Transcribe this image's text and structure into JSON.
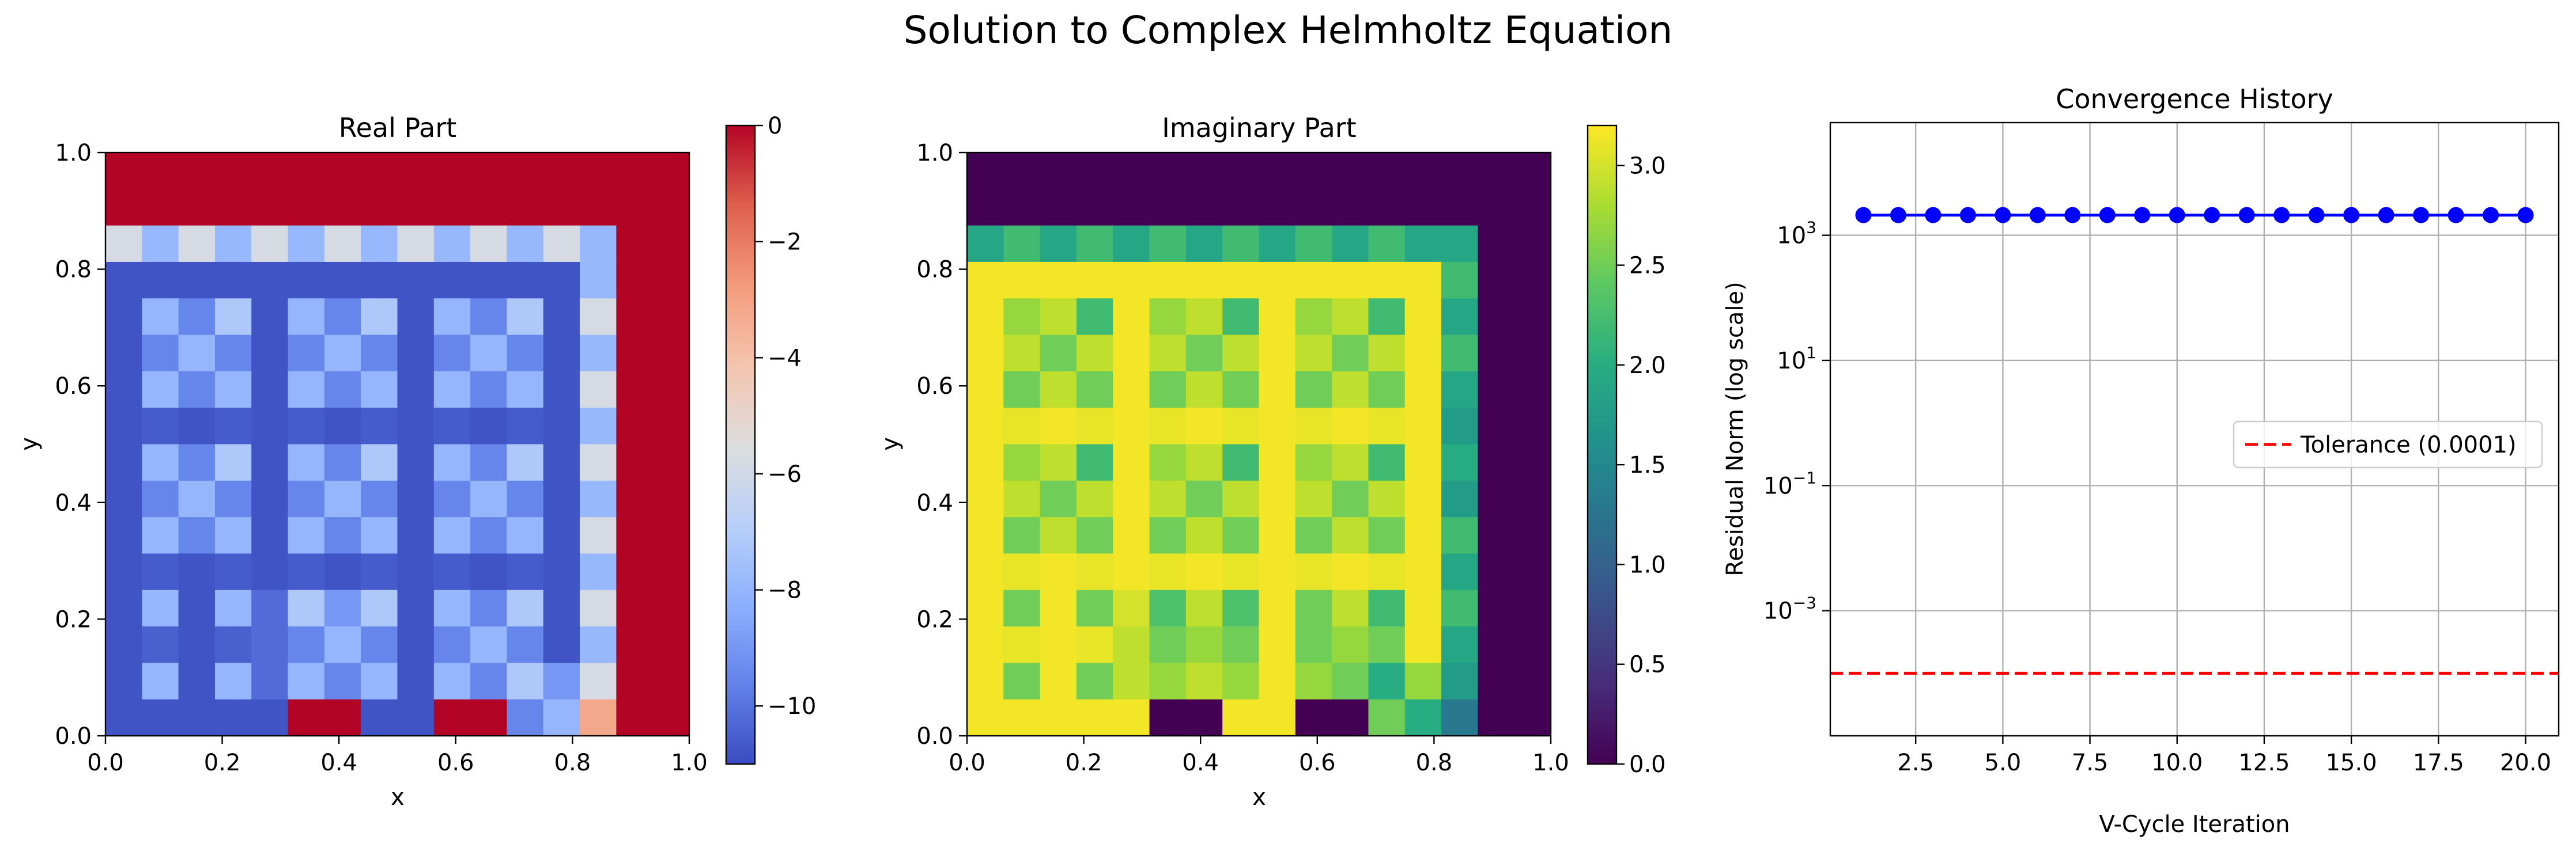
{
  "figure": {
    "title": "Solution to Complex Helmholtz Equation"
  },
  "chart_data": [
    {
      "type": "heatmap",
      "title": "Real Part",
      "xlabel": "x",
      "ylabel": "y",
      "xlim": [
        0.0,
        1.0
      ],
      "ylim": [
        0.0,
        1.0
      ],
      "xticks": [
        "0.0",
        "0.2",
        "0.4",
        "0.6",
        "0.8",
        "1.0"
      ],
      "yticks": [
        "0.0",
        "0.2",
        "0.4",
        "0.6",
        "0.8",
        "1.0"
      ],
      "colormap": "coolwarm",
      "clim": [
        -11.0,
        0.0
      ],
      "colorbar_ticks": [
        "0",
        "−2",
        "−4",
        "−6",
        "−8",
        "−10"
      ],
      "grid_size": 16,
      "values": [
        [
          0,
          0,
          0,
          0,
          0,
          0,
          0,
          0,
          0,
          0,
          0,
          0,
          0,
          0,
          0,
          0
        ],
        [
          0,
          0,
          0,
          0,
          0,
          0,
          0,
          0,
          0,
          0,
          0,
          0,
          0,
          0,
          0,
          0
        ],
        [
          -5.8,
          -7.9,
          -5.8,
          -7.9,
          -5.8,
          -7.9,
          -5.8,
          -7.9,
          -5.8,
          -7.9,
          -5.8,
          -7.9,
          -5.8,
          -7.9,
          0,
          0
        ],
        [
          -10.8,
          -10.8,
          -10.8,
          -10.8,
          -10.8,
          -10.8,
          -10.8,
          -10.8,
          -10.8,
          -10.8,
          -10.8,
          -10.8,
          -10.8,
          -7.9,
          0,
          0
        ],
        [
          -10.8,
          -8.0,
          -9.5,
          -7.2,
          -10.8,
          -8.0,
          -9.5,
          -7.2,
          -10.8,
          -8.0,
          -9.5,
          -7.2,
          -10.8,
          -5.8,
          0,
          0
        ],
        [
          -10.8,
          -9.5,
          -8.0,
          -9.5,
          -10.8,
          -9.5,
          -8.0,
          -9.5,
          -10.8,
          -9.5,
          -8.0,
          -9.5,
          -10.8,
          -7.9,
          0,
          0
        ],
        [
          -10.8,
          -8.0,
          -9.5,
          -8.0,
          -10.8,
          -8.0,
          -9.5,
          -8.0,
          -10.8,
          -8.0,
          -9.5,
          -8.0,
          -10.8,
          -5.8,
          0,
          0
        ],
        [
          -10.8,
          -10.6,
          -10.8,
          -10.6,
          -10.8,
          -10.6,
          -10.8,
          -10.6,
          -10.8,
          -10.6,
          -10.8,
          -10.6,
          -10.8,
          -7.9,
          0,
          0
        ],
        [
          -10.8,
          -8.0,
          -9.5,
          -7.2,
          -10.8,
          -8.0,
          -9.5,
          -7.2,
          -10.8,
          -8.0,
          -9.5,
          -7.2,
          -10.8,
          -5.8,
          0,
          0
        ],
        [
          -10.8,
          -9.5,
          -8.0,
          -9.5,
          -10.8,
          -9.5,
          -8.0,
          -9.5,
          -10.8,
          -9.5,
          -8.0,
          -9.5,
          -10.8,
          -7.9,
          0,
          0
        ],
        [
          -10.8,
          -8.0,
          -9.5,
          -8.0,
          -10.8,
          -8.0,
          -9.5,
          -8.0,
          -10.8,
          -8.0,
          -9.5,
          -8.0,
          -10.8,
          -5.8,
          0,
          0
        ],
        [
          -10.8,
          -10.6,
          -10.8,
          -10.6,
          -10.8,
          -10.6,
          -10.8,
          -10.6,
          -10.8,
          -10.6,
          -10.8,
          -10.6,
          -10.8,
          -7.9,
          0,
          0
        ],
        [
          -10.8,
          -8.0,
          -10.8,
          -8.0,
          -10.2,
          -7.2,
          -9.0,
          -7.2,
          -10.8,
          -8.0,
          -9.5,
          -7.2,
          -10.8,
          -5.8,
          0,
          0
        ],
        [
          -10.8,
          -10.5,
          -10.8,
          -10.5,
          -10.2,
          -9.5,
          -8.0,
          -9.5,
          -10.8,
          -9.5,
          -8.0,
          -9.5,
          -10.8,
          -7.9,
          0,
          0
        ],
        [
          -10.8,
          -8.0,
          -10.8,
          -8.0,
          -10.2,
          -8.0,
          -9.5,
          -8.0,
          -10.8,
          -8.0,
          -9.5,
          -7.2,
          -9.0,
          -5.8,
          0,
          0
        ],
        [
          -10.8,
          -10.8,
          -10.8,
          -10.8,
          -10.8,
          0,
          0,
          -10.8,
          -10.8,
          0,
          0,
          -9.5,
          -8.0,
          -3.2,
          0,
          0
        ]
      ]
    },
    {
      "type": "heatmap",
      "title": "Imaginary Part",
      "xlabel": "x",
      "ylabel": "y",
      "xlim": [
        0.0,
        1.0
      ],
      "ylim": [
        0.0,
        1.0
      ],
      "xticks": [
        "0.0",
        "0.2",
        "0.4",
        "0.6",
        "0.8",
        "1.0"
      ],
      "yticks": [
        "0.0",
        "0.2",
        "0.4",
        "0.6",
        "0.8",
        "1.0"
      ],
      "colormap": "viridis",
      "clim": [
        0.0,
        3.2
      ],
      "colorbar_ticks": [
        "0.0",
        "0.5",
        "1.0",
        "1.5",
        "2.0",
        "2.5",
        "3.0"
      ],
      "grid_size": 16,
      "values": [
        [
          0,
          0,
          0,
          0,
          0,
          0,
          0,
          0,
          0,
          0,
          0,
          0,
          0,
          0,
          0,
          0
        ],
        [
          0,
          0,
          0,
          0,
          0,
          0,
          0,
          0,
          0,
          0,
          0,
          0,
          0,
          0,
          0,
          0
        ],
        [
          1.9,
          2.2,
          1.9,
          2.2,
          1.9,
          2.2,
          1.9,
          2.2,
          1.9,
          2.2,
          1.9,
          2.2,
          1.9,
          1.9,
          0,
          0
        ],
        [
          3.15,
          3.15,
          3.15,
          3.15,
          3.15,
          3.15,
          3.15,
          3.15,
          3.15,
          3.15,
          3.15,
          3.15,
          3.15,
          2.2,
          0,
          0
        ],
        [
          3.15,
          2.7,
          2.9,
          2.2,
          3.15,
          2.7,
          2.9,
          2.2,
          3.15,
          2.7,
          2.9,
          2.2,
          3.15,
          1.9,
          0,
          0
        ],
        [
          3.15,
          2.9,
          2.5,
          2.9,
          3.15,
          2.9,
          2.5,
          2.9,
          3.15,
          2.9,
          2.5,
          2.9,
          3.15,
          2.2,
          0,
          0
        ],
        [
          3.15,
          2.5,
          2.9,
          2.5,
          3.15,
          2.5,
          2.9,
          2.5,
          3.15,
          2.5,
          2.9,
          2.5,
          3.15,
          1.9,
          0,
          0
        ],
        [
          3.15,
          3.1,
          3.15,
          3.1,
          3.15,
          3.1,
          3.15,
          3.1,
          3.15,
          3.1,
          3.15,
          3.1,
          3.15,
          1.75,
          0,
          0
        ],
        [
          3.15,
          2.7,
          2.9,
          2.2,
          3.15,
          2.7,
          2.9,
          2.2,
          3.15,
          2.7,
          2.9,
          2.2,
          3.15,
          2.0,
          0,
          0
        ],
        [
          3.15,
          2.9,
          2.5,
          2.9,
          3.15,
          2.9,
          2.5,
          2.9,
          3.15,
          2.9,
          2.5,
          2.9,
          3.15,
          1.75,
          0,
          0
        ],
        [
          3.15,
          2.5,
          2.9,
          2.5,
          3.15,
          2.5,
          2.9,
          2.5,
          3.15,
          2.5,
          2.9,
          2.5,
          3.15,
          2.2,
          0,
          0
        ],
        [
          3.15,
          3.1,
          3.15,
          3.1,
          3.15,
          3.1,
          3.15,
          3.1,
          3.15,
          3.1,
          3.15,
          3.1,
          3.15,
          1.9,
          0,
          0
        ],
        [
          3.15,
          2.5,
          3.15,
          2.5,
          3.0,
          2.3,
          2.9,
          2.3,
          3.15,
          2.5,
          2.9,
          2.2,
          3.15,
          2.2,
          0,
          0
        ],
        [
          3.15,
          3.1,
          3.15,
          3.1,
          2.9,
          2.5,
          2.7,
          2.5,
          3.15,
          2.5,
          2.7,
          2.5,
          3.15,
          1.9,
          0,
          0
        ],
        [
          3.15,
          2.5,
          3.15,
          2.5,
          2.9,
          2.7,
          2.9,
          2.7,
          3.15,
          2.7,
          2.5,
          2.0,
          2.7,
          1.75,
          0,
          0
        ],
        [
          3.15,
          3.15,
          3.15,
          3.15,
          3.15,
          0,
          0,
          3.15,
          3.15,
          0,
          0,
          2.5,
          2.0,
          1.3,
          0,
          0
        ]
      ]
    },
    {
      "type": "line",
      "title": "Convergence History",
      "xlabel": "V-Cycle Iteration",
      "ylabel": "Residual Norm (log scale)",
      "yscale": "log",
      "xlim": [
        0.05,
        20.95
      ],
      "ylim_log10": [
        -5.0,
        4.8
      ],
      "xticks": [
        2.5,
        5.0,
        7.5,
        10.0,
        12.5,
        15.0,
        17.5,
        20.0
      ],
      "xtick_labels": [
        "2.5",
        "5.0",
        "7.5",
        "10.0",
        "12.5",
        "15.0",
        "17.5",
        "20.0"
      ],
      "yticks": [
        {
          "base": "10",
          "exp": "3",
          "v": 3
        },
        {
          "base": "10",
          "exp": "1",
          "v": 1
        },
        {
          "base": "10",
          "exp": "−1",
          "v": -1
        },
        {
          "base": "10",
          "exp": "−3",
          "v": -3
        }
      ],
      "grid": true,
      "legend_position": "center-right",
      "series": [
        {
          "color": "#0000ff",
          "marker": "circle",
          "x": [
            1,
            2,
            3,
            4,
            5,
            6,
            7,
            8,
            9,
            10,
            11,
            12,
            13,
            14,
            15,
            16,
            17,
            18,
            19,
            20
          ],
          "y": [
            2100,
            2100,
            2100,
            2100,
            2100,
            2100,
            2100,
            2100,
            2100,
            2100,
            2100,
            2100,
            2100,
            2100,
            2100,
            2100,
            2100,
            2100,
            2100,
            2100
          ]
        }
      ],
      "reference_line": {
        "name": "Tolerance (0.0001)",
        "value": 0.0001,
        "color": "#ff0000",
        "style": "dashed"
      }
    }
  ]
}
